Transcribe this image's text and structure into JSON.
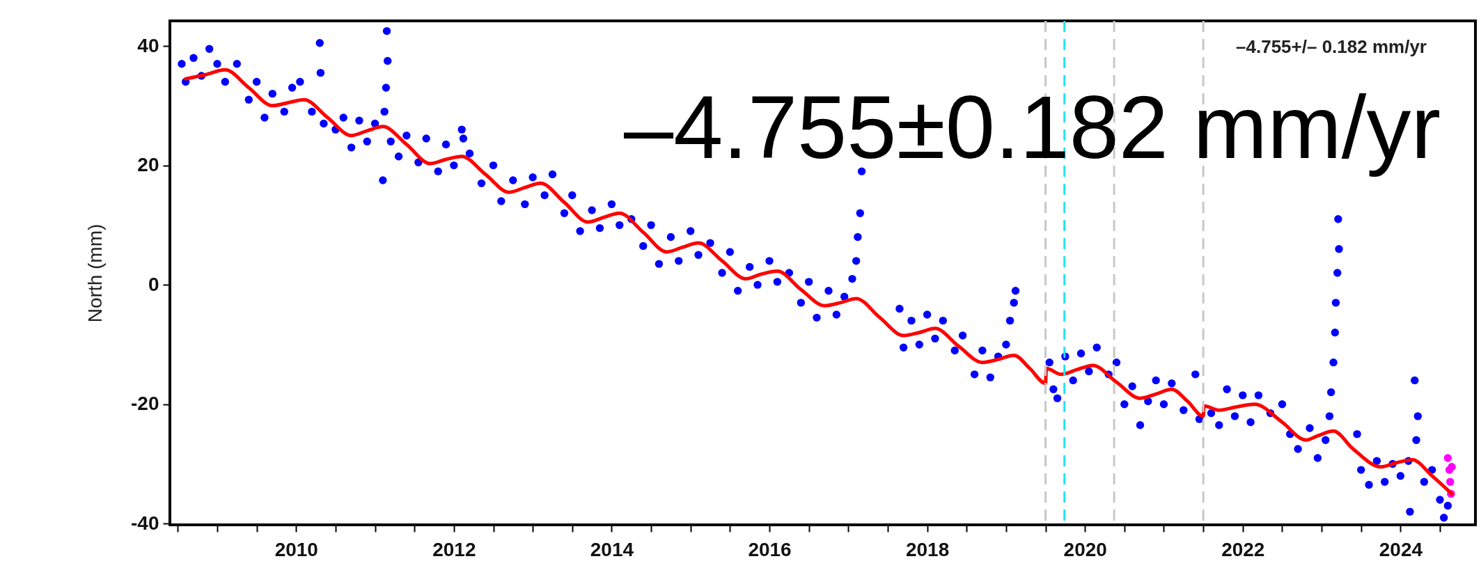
{
  "chart_data": {
    "type": "scatter",
    "ylabel": "North (mm)",
    "annotations": [
      "–4.755+/– 0.182 mm/yr",
      "–4.755±0.182 mm/yr"
    ],
    "xlim": [
      2008.4,
      2024.95
    ],
    "ylim": [
      -40.2,
      44.2
    ],
    "xticks": [
      {
        "value": 2008.5,
        "label": null
      },
      {
        "value": 2009,
        "label": null
      },
      {
        "value": 2009.5,
        "label": null
      },
      2010,
      {
        "value": 2010.5,
        "label": null
      },
      {
        "value": 2011,
        "label": null
      },
      {
        "value": 2011.5,
        "label": null
      },
      2012,
      {
        "value": 2012.5,
        "label": null
      },
      {
        "value": 2013,
        "label": null
      },
      {
        "value": 2013.5,
        "label": null
      },
      2014,
      {
        "value": 2014.5,
        "label": null
      },
      {
        "value": 2015,
        "label": null
      },
      {
        "value": 2015.5,
        "label": null
      },
      2016,
      {
        "value": 2016.5,
        "label": null
      },
      {
        "value": 2017,
        "label": null
      },
      {
        "value": 2017.5,
        "label": null
      },
      2018,
      {
        "value": 2018.5,
        "label": null
      },
      {
        "value": 2019,
        "label": null
      },
      {
        "value": 2019.5,
        "label": null
      },
      2020,
      {
        "value": 2020.5,
        "label": null
      },
      {
        "value": 2021,
        "label": null
      },
      {
        "value": 2021.5,
        "label": null
      },
      2022,
      {
        "value": 2022.5,
        "label": null
      },
      {
        "value": 2023,
        "label": null
      },
      {
        "value": 2023.5,
        "label": null
      },
      2024,
      {
        "value": 2024.5,
        "label": null
      }
    ],
    "yticks": [
      -40,
      -20,
      0,
      20,
      40
    ],
    "grid": false,
    "legend": false,
    "ref_lines": [
      {
        "axis": "x",
        "value": 2019.5,
        "color": "#c8c8c8",
        "line_style": "dashed"
      },
      {
        "axis": "x",
        "value": 2019.74,
        "color": "#22e4f0",
        "line_style": "dashed"
      },
      {
        "axis": "x",
        "value": 2020.37,
        "color": "#c8c8c8",
        "line_style": "dashed"
      },
      {
        "axis": "x",
        "value": 2021.5,
        "color": "#c8c8c8",
        "line_style": "dashed"
      }
    ],
    "series": [
      {
        "marker": "circle",
        "color": "#0000ff",
        "x": [
          2008.55,
          2008.6,
          2008.7,
          2008.8,
          2008.9,
          2009.0,
          2009.1,
          2009.25,
          2009.4,
          2009.5,
          2009.6,
          2009.7,
          2009.85,
          2009.95,
          2010.05,
          2010.2,
          2010.3,
          2010.31,
          2010.35,
          2010.5,
          2010.6,
          2010.7,
          2010.8,
          2010.9,
          2011.0,
          2011.1,
          2011.15,
          2011.16,
          2011.14,
          2011.12,
          2011.2,
          2011.3,
          2011.4,
          2011.55,
          2011.65,
          2011.8,
          2011.9,
          2012.0,
          2012.1,
          2012.12,
          2012.2,
          2012.35,
          2012.5,
          2012.6,
          2012.75,
          2012.9,
          2013.0,
          2013.15,
          2013.25,
          2013.4,
          2013.5,
          2013.6,
          2013.75,
          2013.85,
          2014.0,
          2014.1,
          2014.25,
          2014.4,
          2014.5,
          2014.6,
          2014.75,
          2014.85,
          2015.0,
          2015.1,
          2015.25,
          2015.4,
          2015.5,
          2015.6,
          2015.75,
          2015.85,
          2016.0,
          2016.1,
          2016.25,
          2016.4,
          2016.5,
          2016.6,
          2016.75,
          2016.85,
          2016.95,
          2017.05,
          2017.1,
          2017.12,
          2017.15,
          2017.17,
          2017.65,
          2017.7,
          2017.8,
          2017.9,
          2018.0,
          2018.1,
          2018.2,
          2018.35,
          2018.45,
          2018.6,
          2018.7,
          2018.8,
          2018.9,
          2019.0,
          2019.05,
          2019.1,
          2019.12,
          2019.55,
          2019.6,
          2019.65,
          2019.75,
          2019.85,
          2019.95,
          2020.05,
          2020.15,
          2020.3,
          2020.4,
          2020.5,
          2020.6,
          2020.7,
          2020.8,
          2020.9,
          2021.0,
          2021.1,
          2021.25,
          2021.4,
          2021.45,
          2021.6,
          2021.7,
          2021.8,
          2021.9,
          2022.0,
          2022.1,
          2022.2,
          2022.35,
          2022.5,
          2022.6,
          2022.7,
          2022.85,
          2022.95,
          2023.05,
          2023.1,
          2023.12,
          2023.15,
          2023.17,
          2023.18,
          2023.2,
          2023.22,
          2023.21,
          2023.45,
          2023.5,
          2023.6,
          2023.7,
          2023.8,
          2023.9,
          2024.0,
          2024.1,
          2024.2,
          2024.22,
          2024.18,
          2024.12,
          2024.3,
          2024.4,
          2024.5,
          2024.55,
          2024.6
        ],
        "values": [
          37,
          34,
          38,
          35,
          39.5,
          37,
          34,
          37,
          31,
          34,
          28,
          32,
          29,
          33,
          34,
          29,
          40.5,
          35.5,
          27,
          26,
          28,
          23,
          27.5,
          24,
          27,
          17.5,
          42.5,
          37.5,
          33,
          29,
          24,
          21.5,
          25,
          20.5,
          24.5,
          19,
          23.5,
          20,
          26,
          24.5,
          22,
          17,
          20,
          14,
          17.5,
          13.5,
          18,
          15,
          18.5,
          12,
          15,
          9,
          12.5,
          9.5,
          13.5,
          10,
          11,
          6.5,
          10,
          3.5,
          8,
          4,
          9,
          5,
          7,
          2,
          5.5,
          -1,
          3,
          0,
          4,
          0.5,
          2,
          -3,
          0.5,
          -5.5,
          -1,
          -5,
          -2,
          1,
          4,
          8,
          12,
          19,
          -4,
          -10.5,
          -6,
          -10,
          -5,
          -9,
          -6,
          -11,
          -8.5,
          -15,
          -11,
          -15.5,
          -12,
          -10,
          -6,
          -3,
          -1,
          -13,
          -17.5,
          -19,
          -12,
          -16,
          -11.5,
          -14.5,
          -10.5,
          -15,
          -13,
          -20,
          -17,
          -23.5,
          -19.5,
          -16,
          -20,
          -16.5,
          -21,
          -15,
          -22.5,
          -21.5,
          -23.5,
          -17.5,
          -22,
          -18.5,
          -23,
          -18.5,
          -21.5,
          -20,
          -25,
          -27.5,
          -24,
          -29,
          -26,
          -22,
          -18,
          -13,
          -8,
          -3,
          2,
          6,
          11,
          -25,
          -31,
          -33.5,
          -29.5,
          -33,
          -30,
          -32,
          -29.5,
          -26,
          -22,
          -16,
          -38,
          -33,
          -31,
          -36,
          -39,
          -37
        ]
      },
      {
        "marker": "circle",
        "color": "#ff00ff",
        "x": [
          2024.6,
          2024.62,
          2024.63,
          2024.64,
          2024.65
        ],
        "values": [
          -29,
          -31,
          -33,
          -35,
          -30.5
        ]
      },
      {
        "type": "line",
        "color": "#ff0000",
        "x": [
          2008.6,
          2008.85,
          2009.1,
          2009.4,
          2009.7,
          2009.9,
          2010.1,
          2010.4,
          2010.7,
          2010.9,
          2011.1,
          2011.4,
          2011.7,
          2011.9,
          2012.1,
          2012.4,
          2012.7,
          2012.9,
          2013.1,
          2013.4,
          2013.7,
          2013.9,
          2014.1,
          2014.4,
          2014.7,
          2014.9,
          2015.1,
          2015.4,
          2015.7,
          2015.9,
          2016.1,
          2016.4,
          2016.7,
          2016.9,
          2017.1,
          2017.4,
          2017.7,
          2017.9,
          2018.1,
          2018.4,
          2018.7,
          2018.9,
          2019.1,
          2019.3,
          2019.5,
          2019.51,
          2019.7,
          2019.9,
          2020.1,
          2020.4,
          2020.7,
          2020.9,
          2021.1,
          2021.3,
          2021.5,
          2021.51,
          2021.7,
          2021.9,
          2022.15,
          2022.5,
          2022.8,
          2022.95,
          2023.15,
          2023.4,
          2023.75,
          2023.95,
          2024.15,
          2024.4,
          2024.65
        ],
        "values": [
          34.5,
          35.2,
          36,
          33,
          30,
          30.5,
          31,
          28,
          25,
          25.8,
          26.5,
          23.5,
          20.3,
          21,
          21.5,
          18.5,
          15.5,
          16.3,
          17,
          13.8,
          10.5,
          11.3,
          12,
          8.8,
          5.5,
          6.3,
          7,
          4,
          1,
          1.8,
          2.3,
          -0.8,
          -3.5,
          -3,
          -2.3,
          -5.5,
          -8.5,
          -8,
          -7.3,
          -10.3,
          -13,
          -12.5,
          -11.8,
          -14,
          -16.5,
          -14,
          -15,
          -14.2,
          -13.5,
          -16.3,
          -19,
          -18.3,
          -17.5,
          -19.5,
          -22,
          -20.3,
          -21,
          -20.5,
          -20,
          -23,
          -26,
          -25.3,
          -24.5,
          -27.5,
          -30.5,
          -29.8,
          -29.3,
          -32,
          -35
        ]
      }
    ]
  }
}
